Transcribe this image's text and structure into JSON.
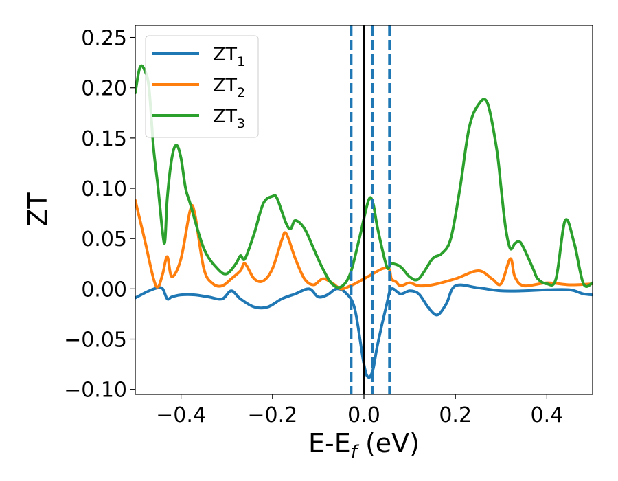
{
  "chart_data": {
    "type": "line",
    "xlabel": "E-E",
    "xlabel_sub": "f",
    "xlabel_unit": " (eV)",
    "ylabel": "ZT",
    "xlim": [
      -0.5,
      0.5
    ],
    "ylim": [
      -0.105,
      0.262
    ],
    "xticks": [
      -0.4,
      -0.2,
      0.0,
      0.2,
      0.4
    ],
    "xtick_labels": [
      "−0.4",
      "−0.2",
      "0.0",
      "0.2",
      "0.4"
    ],
    "yticks": [
      -0.1,
      -0.05,
      0.0,
      0.05,
      0.1,
      0.15,
      0.2,
      0.25
    ],
    "ytick_labels": [
      "−0.10",
      "−0.05",
      "0.00",
      "0.05",
      "0.10",
      "0.15",
      "0.20",
      "0.25"
    ],
    "grid": false,
    "legend": "top-left",
    "vlines": [
      {
        "x": 0.0,
        "style": "solid",
        "color": "#000000"
      },
      {
        "x": -0.028,
        "style": "dashed",
        "color": "#1f77b4"
      },
      {
        "x": 0.018,
        "style": "dashed",
        "color": "#1f77b4"
      },
      {
        "x": 0.056,
        "style": "dashed",
        "color": "#1f77b4"
      }
    ],
    "series": [
      {
        "name": "ZT",
        "name_sub": "1",
        "color": "#1f77b4",
        "x": [
          -0.5,
          -0.47,
          -0.45,
          -0.44,
          -0.43,
          -0.42,
          -0.4,
          -0.37,
          -0.34,
          -0.31,
          -0.29,
          -0.27,
          -0.24,
          -0.21,
          -0.18,
          -0.15,
          -0.12,
          -0.1,
          -0.08,
          -0.06,
          -0.04,
          -0.02,
          0.0,
          0.01,
          0.02,
          0.03,
          0.05,
          0.06,
          0.08,
          0.1,
          0.12,
          0.14,
          0.16,
          0.18,
          0.2,
          0.25,
          0.3,
          0.35,
          0.4,
          0.45,
          0.48,
          0.5
        ],
        "values": [
          -0.009,
          -0.002,
          0.001,
          0.0,
          -0.01,
          -0.008,
          -0.006,
          -0.006,
          -0.008,
          -0.01,
          -0.002,
          -0.01,
          -0.018,
          -0.018,
          -0.01,
          -0.005,
          0.0,
          -0.008,
          -0.006,
          0.0,
          -0.004,
          -0.02,
          -0.075,
          -0.088,
          -0.08,
          -0.055,
          -0.015,
          0.0,
          -0.005,
          -0.002,
          -0.005,
          -0.018,
          -0.026,
          -0.015,
          0.003,
          0.001,
          -0.002,
          -0.002,
          -0.001,
          -0.001,
          -0.005,
          -0.006
        ]
      },
      {
        "name": "ZT",
        "name_sub": "2",
        "color": "#ff7f0e",
        "x": [
          -0.5,
          -0.48,
          -0.46,
          -0.45,
          -0.44,
          -0.43,
          -0.42,
          -0.4,
          -0.38,
          -0.37,
          -0.35,
          -0.33,
          -0.31,
          -0.29,
          -0.27,
          -0.26,
          -0.24,
          -0.22,
          -0.2,
          -0.18,
          -0.17,
          -0.15,
          -0.13,
          -0.11,
          -0.09,
          -0.07,
          -0.05,
          -0.03,
          -0.02,
          0.0,
          0.02,
          0.04,
          0.055,
          0.06,
          0.07,
          0.08,
          0.1,
          0.12,
          0.15,
          0.2,
          0.25,
          0.28,
          0.3,
          0.32,
          0.33,
          0.35,
          0.4,
          0.45,
          0.5
        ],
        "values": [
          0.088,
          0.05,
          0.01,
          0.002,
          0.015,
          0.032,
          0.012,
          0.03,
          0.078,
          0.075,
          0.02,
          0.005,
          0.003,
          0.01,
          0.018,
          0.025,
          0.01,
          0.008,
          0.02,
          0.048,
          0.055,
          0.03,
          0.01,
          0.004,
          0.01,
          0.006,
          0.0,
          0.003,
          0.005,
          0.01,
          0.015,
          0.02,
          0.02,
          0.01,
          0.007,
          0.003,
          0.006,
          0.003,
          0.004,
          0.01,
          0.018,
          0.01,
          0.005,
          0.03,
          0.012,
          0.003,
          0.006,
          0.004,
          0.005
        ]
      },
      {
        "name": "ZT",
        "name_sub": "3",
        "color": "#2ca02c",
        "x": [
          -0.5,
          -0.49,
          -0.48,
          -0.47,
          -0.46,
          -0.45,
          -0.44,
          -0.435,
          -0.43,
          -0.42,
          -0.41,
          -0.4,
          -0.39,
          -0.38,
          -0.35,
          -0.32,
          -0.3,
          -0.28,
          -0.27,
          -0.26,
          -0.24,
          -0.22,
          -0.2,
          -0.19,
          -0.17,
          -0.16,
          -0.15,
          -0.13,
          -0.11,
          -0.09,
          -0.07,
          -0.05,
          -0.03,
          -0.01,
          0.01,
          0.02,
          0.03,
          0.05,
          0.06,
          0.08,
          0.1,
          0.12,
          0.15,
          0.17,
          0.19,
          0.21,
          0.23,
          0.25,
          0.27,
          0.29,
          0.3,
          0.31,
          0.32,
          0.33,
          0.34,
          0.35,
          0.37,
          0.38,
          0.4,
          0.42,
          0.44,
          0.46,
          0.48,
          0.5
        ],
        "values": [
          0.195,
          0.22,
          0.218,
          0.2,
          0.14,
          0.1,
          0.055,
          0.048,
          0.09,
          0.13,
          0.143,
          0.13,
          0.1,
          0.085,
          0.04,
          0.02,
          0.015,
          0.025,
          0.033,
          0.03,
          0.055,
          0.085,
          0.092,
          0.09,
          0.065,
          0.06,
          0.068,
          0.06,
          0.04,
          0.02,
          0.005,
          0.002,
          0.015,
          0.05,
          0.088,
          0.085,
          0.06,
          0.022,
          0.025,
          0.022,
          0.012,
          0.01,
          0.03,
          0.035,
          0.05,
          0.1,
          0.16,
          0.183,
          0.185,
          0.14,
          0.1,
          0.06,
          0.04,
          0.045,
          0.047,
          0.04,
          0.02,
          0.01,
          0.005,
          0.01,
          0.068,
          0.045,
          0.005,
          0.006
        ]
      }
    ]
  }
}
